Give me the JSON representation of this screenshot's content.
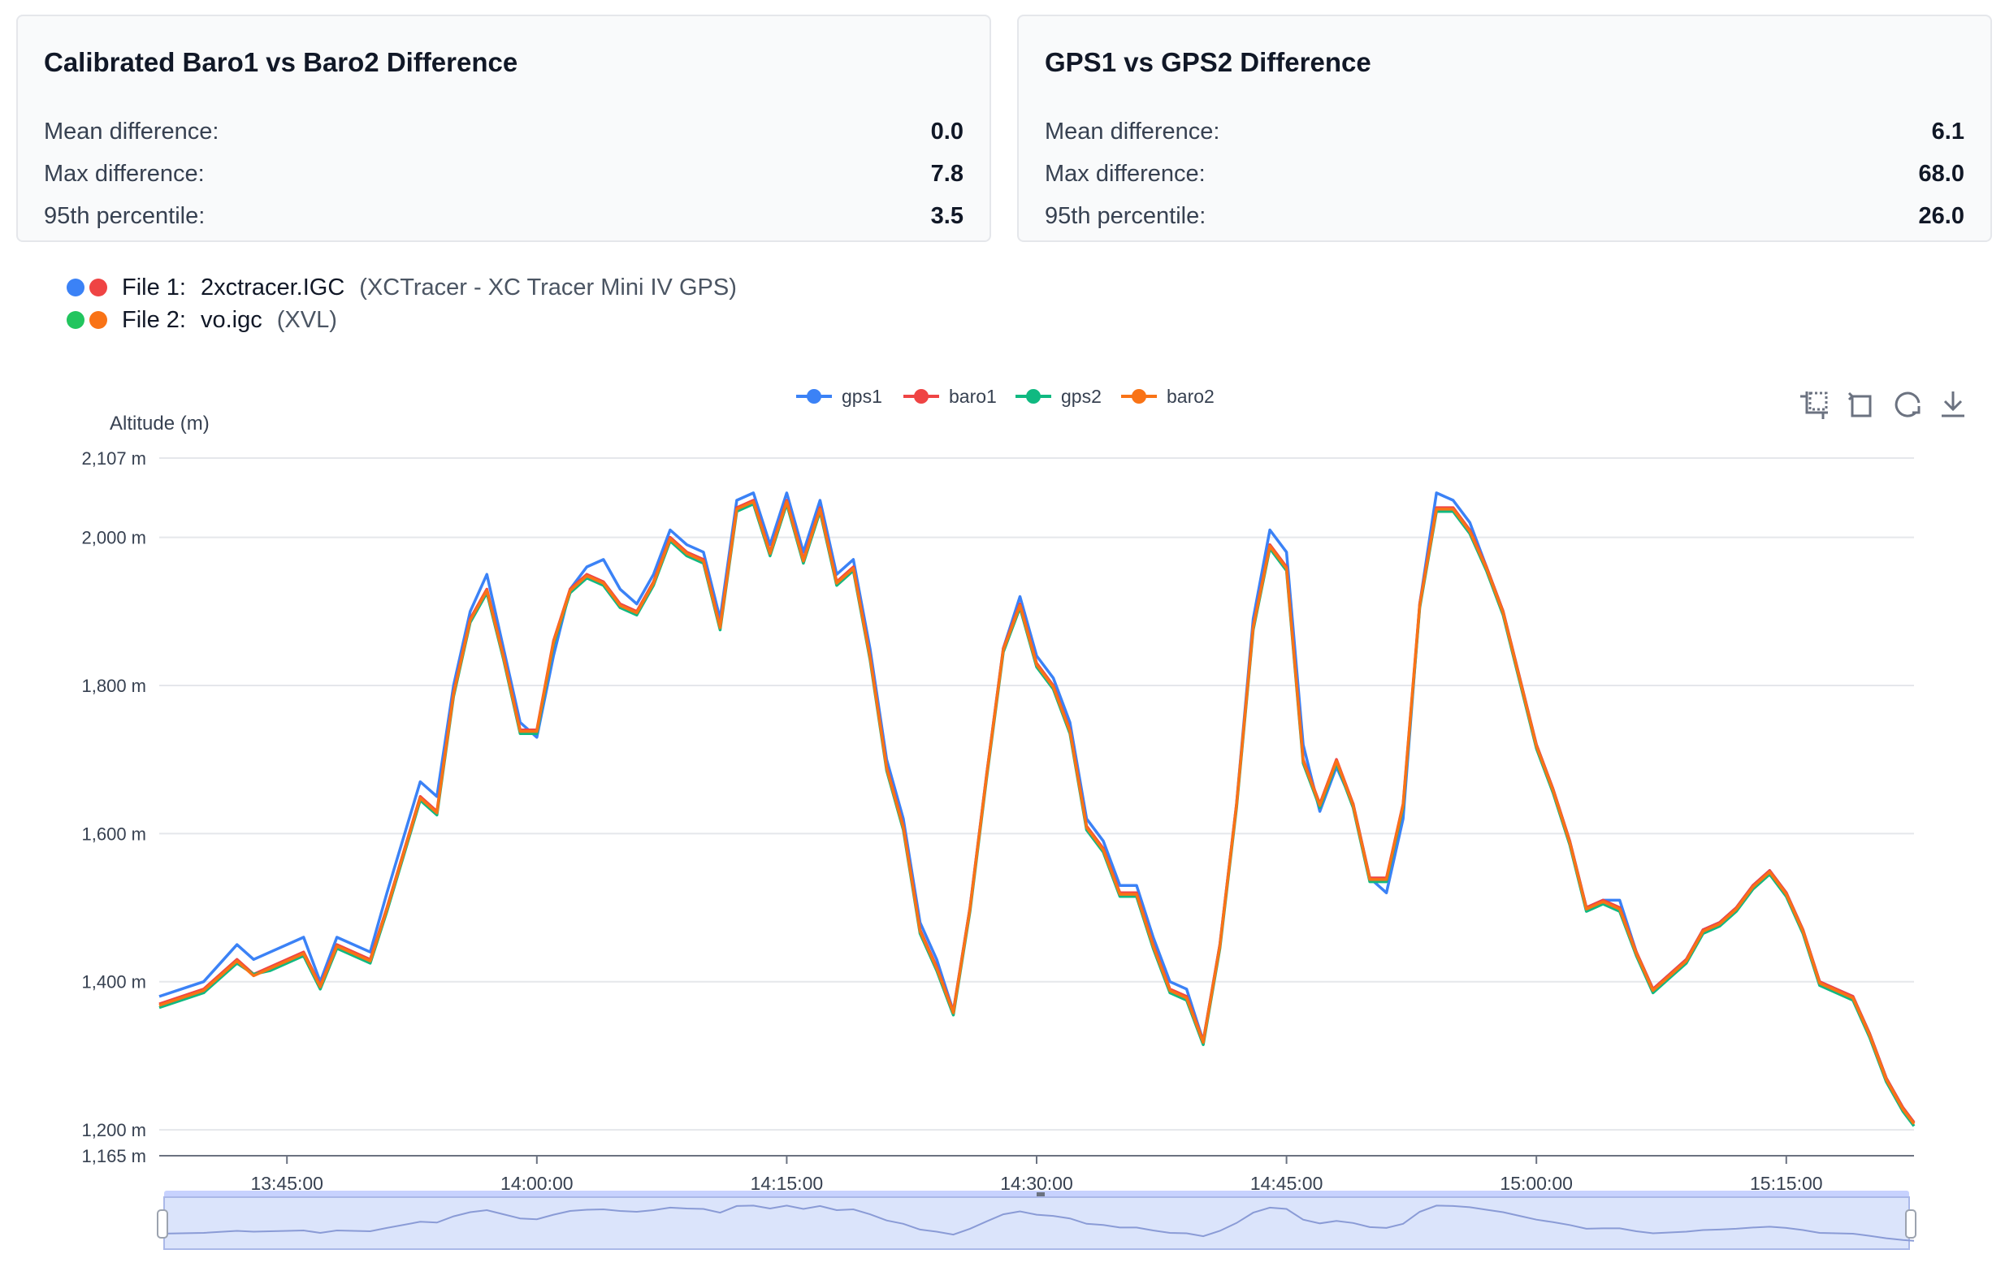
{
  "stats": [
    {
      "title": "Calibrated Baro1 vs Baro2 Difference",
      "rows": [
        {
          "label": "Mean difference:",
          "value": "0.0"
        },
        {
          "label": "Max difference:",
          "value": "7.8"
        },
        {
          "label": "95th percentile:",
          "value": "3.5"
        }
      ]
    },
    {
      "title": "GPS1 vs GPS2 Difference",
      "rows": [
        {
          "label": "Mean difference:",
          "value": "6.1"
        },
        {
          "label": "Max difference:",
          "value": "68.0"
        },
        {
          "label": "95th percentile:",
          "value": "26.0"
        }
      ]
    }
  ],
  "files": [
    {
      "label": "File 1:",
      "name": "2xctracer.IGC",
      "meta": "(XCTracer - XC Tracer Mini IV GPS)",
      "colors": [
        "#3b82f6",
        "#ef4444"
      ]
    },
    {
      "label": "File 2:",
      "name": "vo.igc",
      "meta": "(XVL)",
      "colors": [
        "#22c55e",
        "#f97316"
      ]
    }
  ],
  "toolbox": [
    "zoom-select-icon",
    "zoom-reset-icon",
    "restore-icon",
    "download-icon"
  ],
  "chart_data": {
    "type": "line",
    "title": "",
    "xlabel": "",
    "ylabel": "Altitude (m)",
    "ylim": [
      1165,
      2107
    ],
    "yticks": [
      "2,107 m",
      "2,000 m",
      "1,800 m",
      "1,600 m",
      "1,400 m",
      "1,200 m",
      "1,165 m"
    ],
    "ytick_values": [
      2107,
      2000,
      1800,
      1600,
      1400,
      1200,
      1165
    ],
    "xlim": [
      "13:37:20",
      "15:22:40"
    ],
    "xticks": [
      "13:45:00",
      "14:00:00",
      "14:15:00",
      "14:30:00",
      "14:45:00",
      "15:00:00",
      "15:15:00"
    ],
    "grid": true,
    "legend_position": "top-center",
    "series": [
      {
        "name": "gps1",
        "color": "#3b82f6"
      },
      {
        "name": "baro1",
        "color": "#ef4444"
      },
      {
        "name": "gps2",
        "color": "#10b981"
      },
      {
        "name": "baro2",
        "color": "#f97316"
      }
    ],
    "x": [
      "13:37:20",
      "13:40:00",
      "13:42:00",
      "13:43:00",
      "13:44:00",
      "13:46:00",
      "13:47:00",
      "13:48:00",
      "13:50:00",
      "13:51:00",
      "13:53:00",
      "13:54:00",
      "13:55:00",
      "13:56:00",
      "13:57:00",
      "13:58:00",
      "13:59:00",
      "14:00:00",
      "14:01:00",
      "14:02:00",
      "14:03:00",
      "14:04:00",
      "14:05:00",
      "14:06:00",
      "14:07:00",
      "14:08:00",
      "14:09:00",
      "14:10:00",
      "14:11:00",
      "14:12:00",
      "14:13:00",
      "14:14:00",
      "14:15:00",
      "14:16:00",
      "14:17:00",
      "14:18:00",
      "14:19:00",
      "14:20:00",
      "14:21:00",
      "14:22:00",
      "14:23:00",
      "14:24:00",
      "14:25:00",
      "14:26:00",
      "14:27:00",
      "14:28:00",
      "14:29:00",
      "14:30:00",
      "14:31:00",
      "14:32:00",
      "14:33:00",
      "14:34:00",
      "14:35:00",
      "14:36:00",
      "14:37:00",
      "14:38:00",
      "14:39:00",
      "14:40:00",
      "14:41:00",
      "14:42:00",
      "14:43:00",
      "14:44:00",
      "14:45:00",
      "14:46:00",
      "14:47:00",
      "14:48:00",
      "14:49:00",
      "14:50:00",
      "14:51:00",
      "14:52:00",
      "14:53:00",
      "14:54:00",
      "14:55:00",
      "14:56:00",
      "14:57:00",
      "14:58:00",
      "14:59:00",
      "15:00:00",
      "15:01:00",
      "15:02:00",
      "15:03:00",
      "15:04:00",
      "15:05:00",
      "15:06:00",
      "15:07:00",
      "15:08:00",
      "15:09:00",
      "15:10:00",
      "15:11:00",
      "15:12:00",
      "15:13:00",
      "15:14:00",
      "15:15:00",
      "15:16:00",
      "15:17:00",
      "15:18:00",
      "15:19:00",
      "15:20:00",
      "15:21:00",
      "15:22:00",
      "15:22:40"
    ],
    "values": {
      "gps1": [
        1380,
        1400,
        1450,
        1430,
        1440,
        1460,
        1400,
        1460,
        1440,
        1520,
        1670,
        1650,
        1800,
        1900,
        1950,
        1850,
        1750,
        1730,
        1840,
        1930,
        1960,
        1970,
        1930,
        1910,
        1950,
        2010,
        1990,
        1980,
        1890,
        2050,
        2060,
        1990,
        2060,
        1980,
        2050,
        1950,
        1970,
        1850,
        1700,
        1620,
        1480,
        1430,
        1360,
        1500,
        1680,
        1850,
        1920,
        1840,
        1810,
        1750,
        1620,
        1590,
        1530,
        1530,
        1460,
        1400,
        1390,
        1320,
        1450,
        1640,
        1890,
        2010,
        1980,
        1720,
        1630,
        1690,
        1640,
        1540,
        1520,
        1620,
        1910,
        2060,
        2050,
        2020,
        1960,
        1900,
        1810,
        1720,
        1660,
        1590,
        1500,
        1510,
        1510,
        1440,
        1390,
        1410,
        1430,
        1470,
        1480,
        1500,
        1530,
        1550,
        1520,
        1470,
        1400,
        1390,
        1380,
        1330,
        1270,
        1230,
        1210
      ],
      "baro1": [
        1370,
        1390,
        1430,
        1410,
        1420,
        1440,
        1395,
        1450,
        1430,
        1500,
        1650,
        1630,
        1790,
        1890,
        1930,
        1840,
        1740,
        1740,
        1860,
        1930,
        1950,
        1940,
        1910,
        1900,
        1940,
        2000,
        1980,
        1970,
        1880,
        2040,
        2050,
        1980,
        2050,
        1970,
        2040,
        1940,
        1960,
        1840,
        1690,
        1610,
        1470,
        1420,
        1360,
        1500,
        1680,
        1850,
        1910,
        1830,
        1800,
        1740,
        1610,
        1580,
        1520,
        1520,
        1450,
        1390,
        1380,
        1320,
        1450,
        1640,
        1880,
        1990,
        1960,
        1700,
        1640,
        1700,
        1640,
        1540,
        1540,
        1640,
        1910,
        2040,
        2040,
        2010,
        1960,
        1900,
        1810,
        1720,
        1660,
        1590,
        1500,
        1510,
        1500,
        1440,
        1390,
        1410,
        1430,
        1470,
        1480,
        1500,
        1530,
        1550,
        1520,
        1470,
        1400,
        1390,
        1380,
        1330,
        1270,
        1230,
        1210
      ],
      "gps2": [
        1365,
        1385,
        1425,
        1410,
        1415,
        1435,
        1390,
        1445,
        1425,
        1495,
        1645,
        1625,
        1785,
        1885,
        1925,
        1835,
        1735,
        1735,
        1855,
        1925,
        1945,
        1935,
        1905,
        1895,
        1935,
        1995,
        1975,
        1965,
        1875,
        2035,
        2045,
        1975,
        2045,
        1965,
        2035,
        1935,
        1955,
        1835,
        1685,
        1605,
        1465,
        1415,
        1355,
        1495,
        1675,
        1845,
        1905,
        1825,
        1795,
        1735,
        1605,
        1575,
        1515,
        1515,
        1445,
        1385,
        1375,
        1315,
        1445,
        1635,
        1875,
        1985,
        1955,
        1695,
        1635,
        1695,
        1635,
        1535,
        1535,
        1635,
        1905,
        2035,
        2035,
        2005,
        1955,
        1895,
        1805,
        1715,
        1655,
        1585,
        1495,
        1505,
        1495,
        1435,
        1385,
        1405,
        1425,
        1465,
        1475,
        1495,
        1525,
        1545,
        1515,
        1465,
        1395,
        1385,
        1375,
        1325,
        1265,
        1225,
        1205
      ],
      "baro2": [
        1368,
        1388,
        1428,
        1408,
        1418,
        1438,
        1393,
        1448,
        1428,
        1498,
        1648,
        1628,
        1788,
        1888,
        1928,
        1838,
        1738,
        1738,
        1858,
        1928,
        1948,
        1938,
        1908,
        1898,
        1938,
        1998,
        1978,
        1968,
        1878,
        2038,
        2048,
        1978,
        2048,
        1968,
        2038,
        1938,
        1958,
        1838,
        1688,
        1608,
        1468,
        1418,
        1358,
        1498,
        1678,
        1848,
        1908,
        1828,
        1798,
        1738,
        1608,
        1578,
        1518,
        1518,
        1448,
        1388,
        1378,
        1318,
        1448,
        1638,
        1878,
        1988,
        1958,
        1698,
        1638,
        1698,
        1638,
        1538,
        1538,
        1638,
        1908,
        2038,
        2038,
        2008,
        1958,
        1898,
        1808,
        1718,
        1658,
        1588,
        1498,
        1508,
        1498,
        1438,
        1388,
        1408,
        1428,
        1468,
        1478,
        1498,
        1528,
        1548,
        1518,
        1468,
        1398,
        1388,
        1378,
        1328,
        1268,
        1228,
        1208
      ]
    }
  }
}
